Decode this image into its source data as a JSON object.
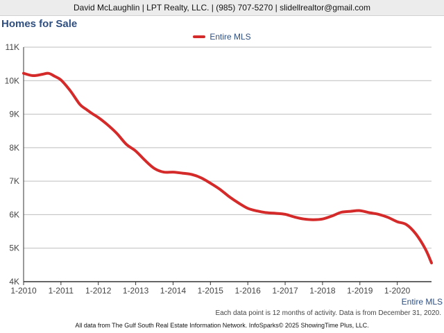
{
  "header": {
    "contact_line": "David McLaughlin | LPT Realty, LLC. | (985) 707-5270 | slidellrealtor@gmail.com"
  },
  "page_title": "Homes for Sale",
  "footnote": "Each data point is 12 months of activity. Data is from December 31, 2020.",
  "credits": "All data from The Gulf South Real Estate Information Network. InfoSparks© 2025 ShowingTime Plus, LLC.",
  "colors": {
    "series": "#d42a2a",
    "title": "#2e4e80",
    "grid": "#bdbdbd",
    "axis": "#333333"
  },
  "chart_data": {
    "type": "line",
    "title": "Homes for Sale",
    "legend_position": "top-center",
    "grid": true,
    "ylim": [
      4000,
      11000
    ],
    "yticks": [
      {
        "value": 4000,
        "label": "4K"
      },
      {
        "value": 5000,
        "label": "5K"
      },
      {
        "value": 6000,
        "label": "6K"
      },
      {
        "value": 7000,
        "label": "7K"
      },
      {
        "value": 8000,
        "label": "8K"
      },
      {
        "value": 9000,
        "label": "9K"
      },
      {
        "value": 10000,
        "label": "10K"
      },
      {
        "value": 11000,
        "label": "11K"
      }
    ],
    "xlim": [
      2010.0,
      2020.9167
    ],
    "xticks": [
      {
        "value": 2010,
        "label": "1-2010"
      },
      {
        "value": 2011,
        "label": "1-2011"
      },
      {
        "value": 2012,
        "label": "1-2012"
      },
      {
        "value": 2013,
        "label": "1-2013"
      },
      {
        "value": 2014,
        "label": "1-2014"
      },
      {
        "value": 2015,
        "label": "1-2015"
      },
      {
        "value": 2016,
        "label": "1-2016"
      },
      {
        "value": 2017,
        "label": "1-2017"
      },
      {
        "value": 2018,
        "label": "1-2018"
      },
      {
        "value": 2019,
        "label": "1-2019"
      },
      {
        "value": 2020,
        "label": "1-2020"
      }
    ],
    "series": [
      {
        "name": "Entire MLS",
        "end_label": "Entire MLS",
        "x": [
          2010.0,
          2010.25,
          2010.5,
          2010.6667,
          2010.8333,
          2011.0,
          2011.25,
          2011.5,
          2011.6667,
          2011.8333,
          2012.0,
          2012.25,
          2012.5,
          2012.75,
          2013.0,
          2013.25,
          2013.5,
          2013.75,
          2014.0,
          2014.25,
          2014.5,
          2014.75,
          2015.0,
          2015.25,
          2015.5,
          2015.75,
          2016.0,
          2016.25,
          2016.5,
          2016.75,
          2017.0,
          2017.25,
          2017.5,
          2017.75,
          2018.0,
          2018.25,
          2018.5,
          2018.75,
          2019.0,
          2019.25,
          2019.5,
          2019.75,
          2020.0,
          2020.25,
          2020.5,
          2020.75,
          2020.9167
        ],
        "values": [
          10220,
          10150,
          10190,
          10220,
          10130,
          10020,
          9700,
          9300,
          9150,
          9020,
          8900,
          8680,
          8420,
          8100,
          7900,
          7620,
          7380,
          7270,
          7270,
          7240,
          7200,
          7100,
          6940,
          6760,
          6540,
          6350,
          6190,
          6110,
          6060,
          6040,
          6010,
          5930,
          5870,
          5850,
          5870,
          5960,
          6070,
          6100,
          6120,
          6060,
          6010,
          5920,
          5790,
          5700,
          5420,
          4980,
          4560
        ]
      }
    ]
  }
}
